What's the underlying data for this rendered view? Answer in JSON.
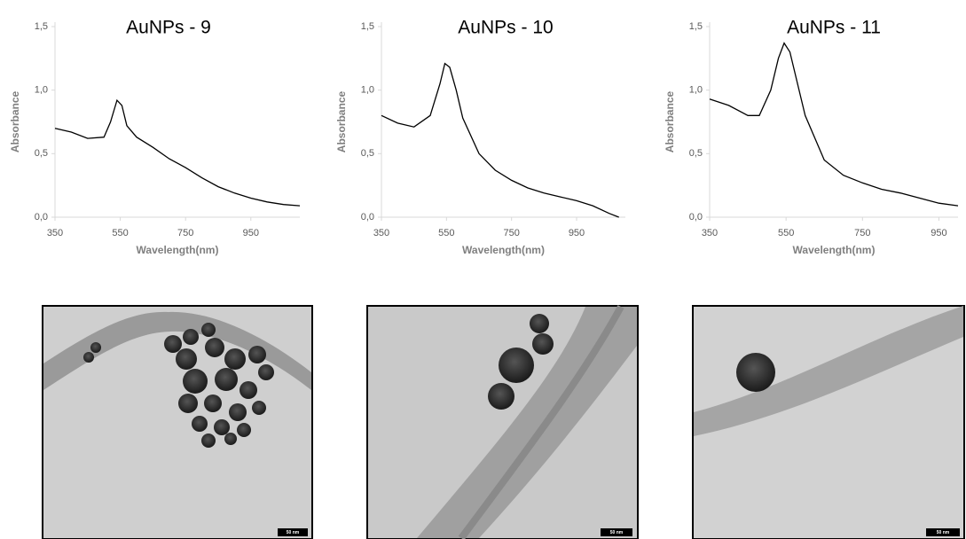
{
  "chart_data": [
    {
      "type": "line",
      "title": "AuNPs - 9",
      "x_label": "Wavelength(nm)",
      "y_label": "Absorbance",
      "x": [
        350,
        400,
        450,
        500,
        520,
        540,
        555,
        570,
        600,
        650,
        700,
        750,
        800,
        850,
        900,
        950,
        1000,
        1050,
        1100
      ],
      "series": [
        {
          "name": "AuNPs - 9",
          "color": "#000000",
          "values": [
            0.7,
            0.67,
            0.62,
            0.63,
            0.75,
            0.92,
            0.88,
            0.72,
            0.63,
            0.55,
            0.46,
            0.39,
            0.31,
            0.24,
            0.19,
            0.15,
            0.12,
            0.1,
            0.09
          ]
        }
      ],
      "xlim": [
        350,
        1100
      ],
      "ylim": [
        0,
        1.5
      ],
      "xticks": [
        350,
        550,
        750,
        950
      ],
      "yticks": [
        {
          "value": 0,
          "label": "0,0"
        },
        {
          "value": 0.5,
          "label": "0,5"
        },
        {
          "value": 1,
          "label": "1,0"
        },
        {
          "value": 1.5,
          "label": "1,5"
        }
      ]
    },
    {
      "type": "line",
      "title": "AuNPs - 10",
      "x_label": "Wavelength(nm)",
      "y_label": "Absorbance",
      "x": [
        350,
        400,
        450,
        500,
        530,
        545,
        560,
        580,
        600,
        650,
        700,
        750,
        800,
        850,
        900,
        950,
        1000,
        1050,
        1080
      ],
      "series": [
        {
          "name": "AuNPs - 10",
          "color": "#000000",
          "values": [
            0.8,
            0.74,
            0.71,
            0.8,
            1.05,
            1.21,
            1.18,
            1.0,
            0.78,
            0.5,
            0.37,
            0.29,
            0.23,
            0.19,
            0.16,
            0.13,
            0.09,
            0.03,
            0.0
          ]
        }
      ],
      "xlim": [
        350,
        1100
      ],
      "ylim": [
        0,
        1.5
      ],
      "xticks": [
        350,
        550,
        750,
        950
      ],
      "yticks": [
        {
          "value": 0,
          "label": "0,0"
        },
        {
          "value": 0.5,
          "label": "0,5"
        },
        {
          "value": 1,
          "label": "1,0"
        },
        {
          "value": 1.5,
          "label": "1,5"
        }
      ]
    },
    {
      "type": "line",
      "title": "AuNPs - 11",
      "x_label": "Wavelength(nm)",
      "y_label": "Absorbance",
      "x": [
        350,
        400,
        450,
        480,
        510,
        530,
        545,
        560,
        580,
        600,
        650,
        700,
        750,
        800,
        850,
        900,
        950,
        1000
      ],
      "series": [
        {
          "name": "AuNPs - 11",
          "color": "#000000",
          "values": [
            0.93,
            0.88,
            0.8,
            0.8,
            1.0,
            1.25,
            1.37,
            1.3,
            1.05,
            0.8,
            0.45,
            0.33,
            0.27,
            0.22,
            0.19,
            0.15,
            0.11,
            0.09
          ]
        }
      ],
      "xlim": [
        350,
        1000
      ],
      "ylim": [
        0,
        1.5
      ],
      "xticks": [
        350,
        550,
        750,
        950
      ],
      "yticks": [
        {
          "value": 0,
          "label": "0,0"
        },
        {
          "value": 0.5,
          "label": "0,5"
        },
        {
          "value": 1,
          "label": "1,0"
        },
        {
          "value": 1.5,
          "label": "1,5"
        }
      ]
    }
  ],
  "images": [
    {
      "scale_bar": "50 nm"
    },
    {
      "scale_bar": "50 nm"
    },
    {
      "scale_bar": "50 nm"
    }
  ]
}
